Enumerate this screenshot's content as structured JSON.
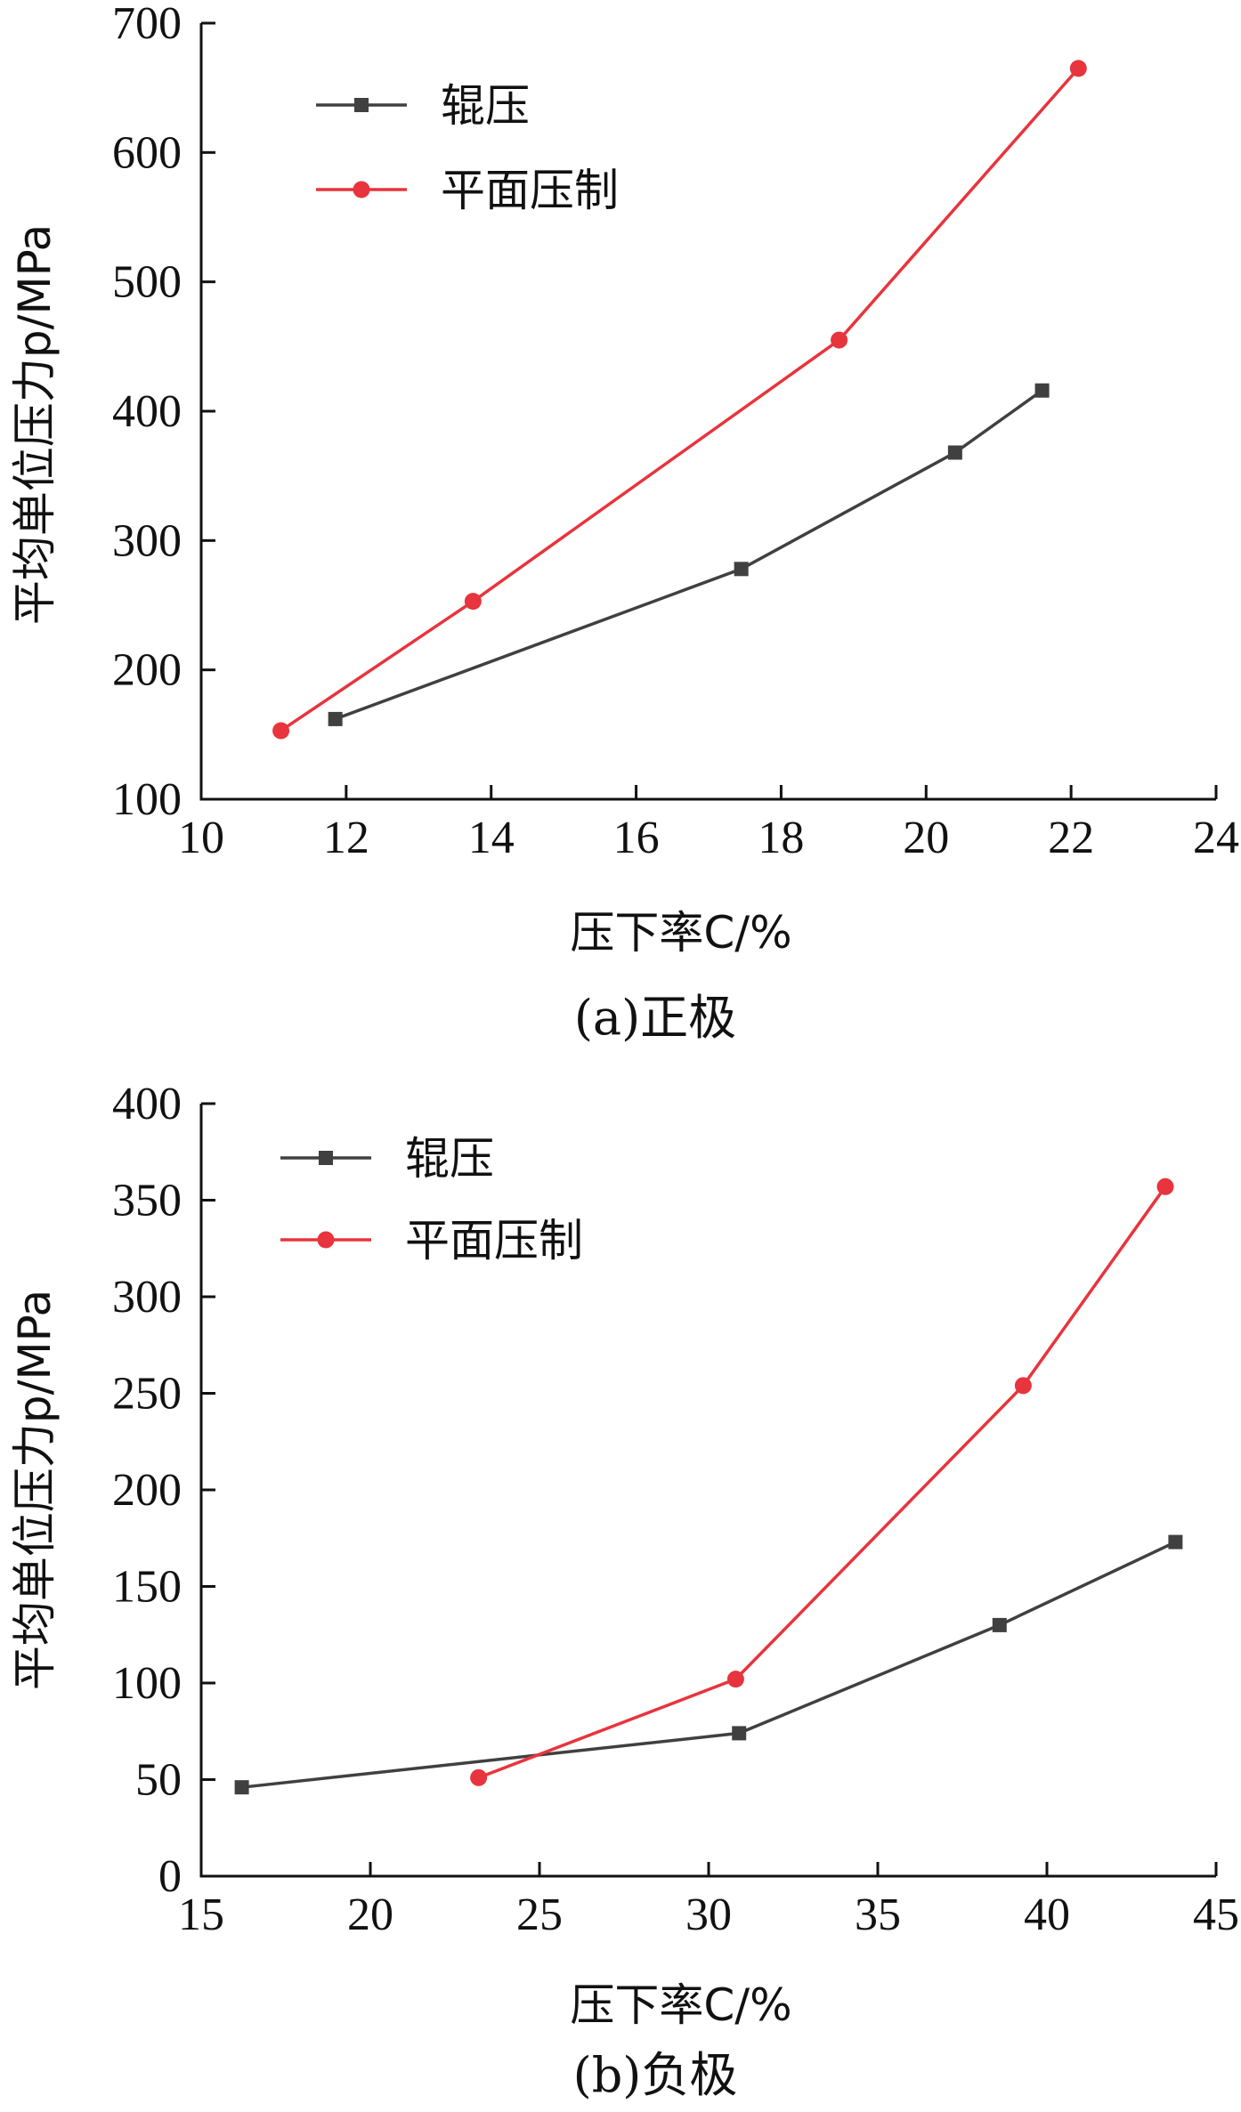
{
  "chart_data": [
    {
      "type": "line",
      "caption": "(a)正极",
      "xlabel": "压下率C/%",
      "ylabel": "平均单位压力p/MPa",
      "xlim": [
        10,
        24
      ],
      "ylim": [
        100,
        700
      ],
      "xticks": [
        10,
        12,
        14,
        16,
        18,
        20,
        22,
        24
      ],
      "yticks": [
        100,
        200,
        300,
        400,
        500,
        600,
        700
      ],
      "legend_position": "top-left",
      "grid": false,
      "series": [
        {
          "name": "辊压",
          "color": "#404040",
          "marker": "square",
          "x": [
            11.85,
            17.45,
            20.4,
            21.6
          ],
          "y": [
            162,
            278,
            368,
            416
          ]
        },
        {
          "name": "平面压制",
          "color": "#e8343c",
          "marker": "circle",
          "x": [
            11.1,
            13.75,
            18.8,
            22.1
          ],
          "y": [
            153,
            253,
            455,
            665
          ]
        }
      ]
    },
    {
      "type": "line",
      "caption": "(b)负极",
      "xlabel": "压下率C/%",
      "ylabel": "平均单位压力p/MPa",
      "xlim": [
        15,
        45
      ],
      "ylim": [
        0,
        400
      ],
      "xticks": [
        15,
        20,
        25,
        30,
        35,
        40,
        45
      ],
      "yticks": [
        0,
        50,
        100,
        150,
        200,
        250,
        300,
        350,
        400
      ],
      "legend_position": "top-left",
      "grid": false,
      "series": [
        {
          "name": "辊压",
          "color": "#404040",
          "marker": "square",
          "x": [
            16.2,
            30.9,
            38.6,
            43.8
          ],
          "y": [
            46,
            74,
            130,
            173
          ]
        },
        {
          "name": "平面压制",
          "color": "#e8343c",
          "marker": "circle",
          "x": [
            23.2,
            30.8,
            39.3,
            43.5
          ],
          "y": [
            51,
            102,
            254,
            357
          ]
        }
      ]
    }
  ]
}
